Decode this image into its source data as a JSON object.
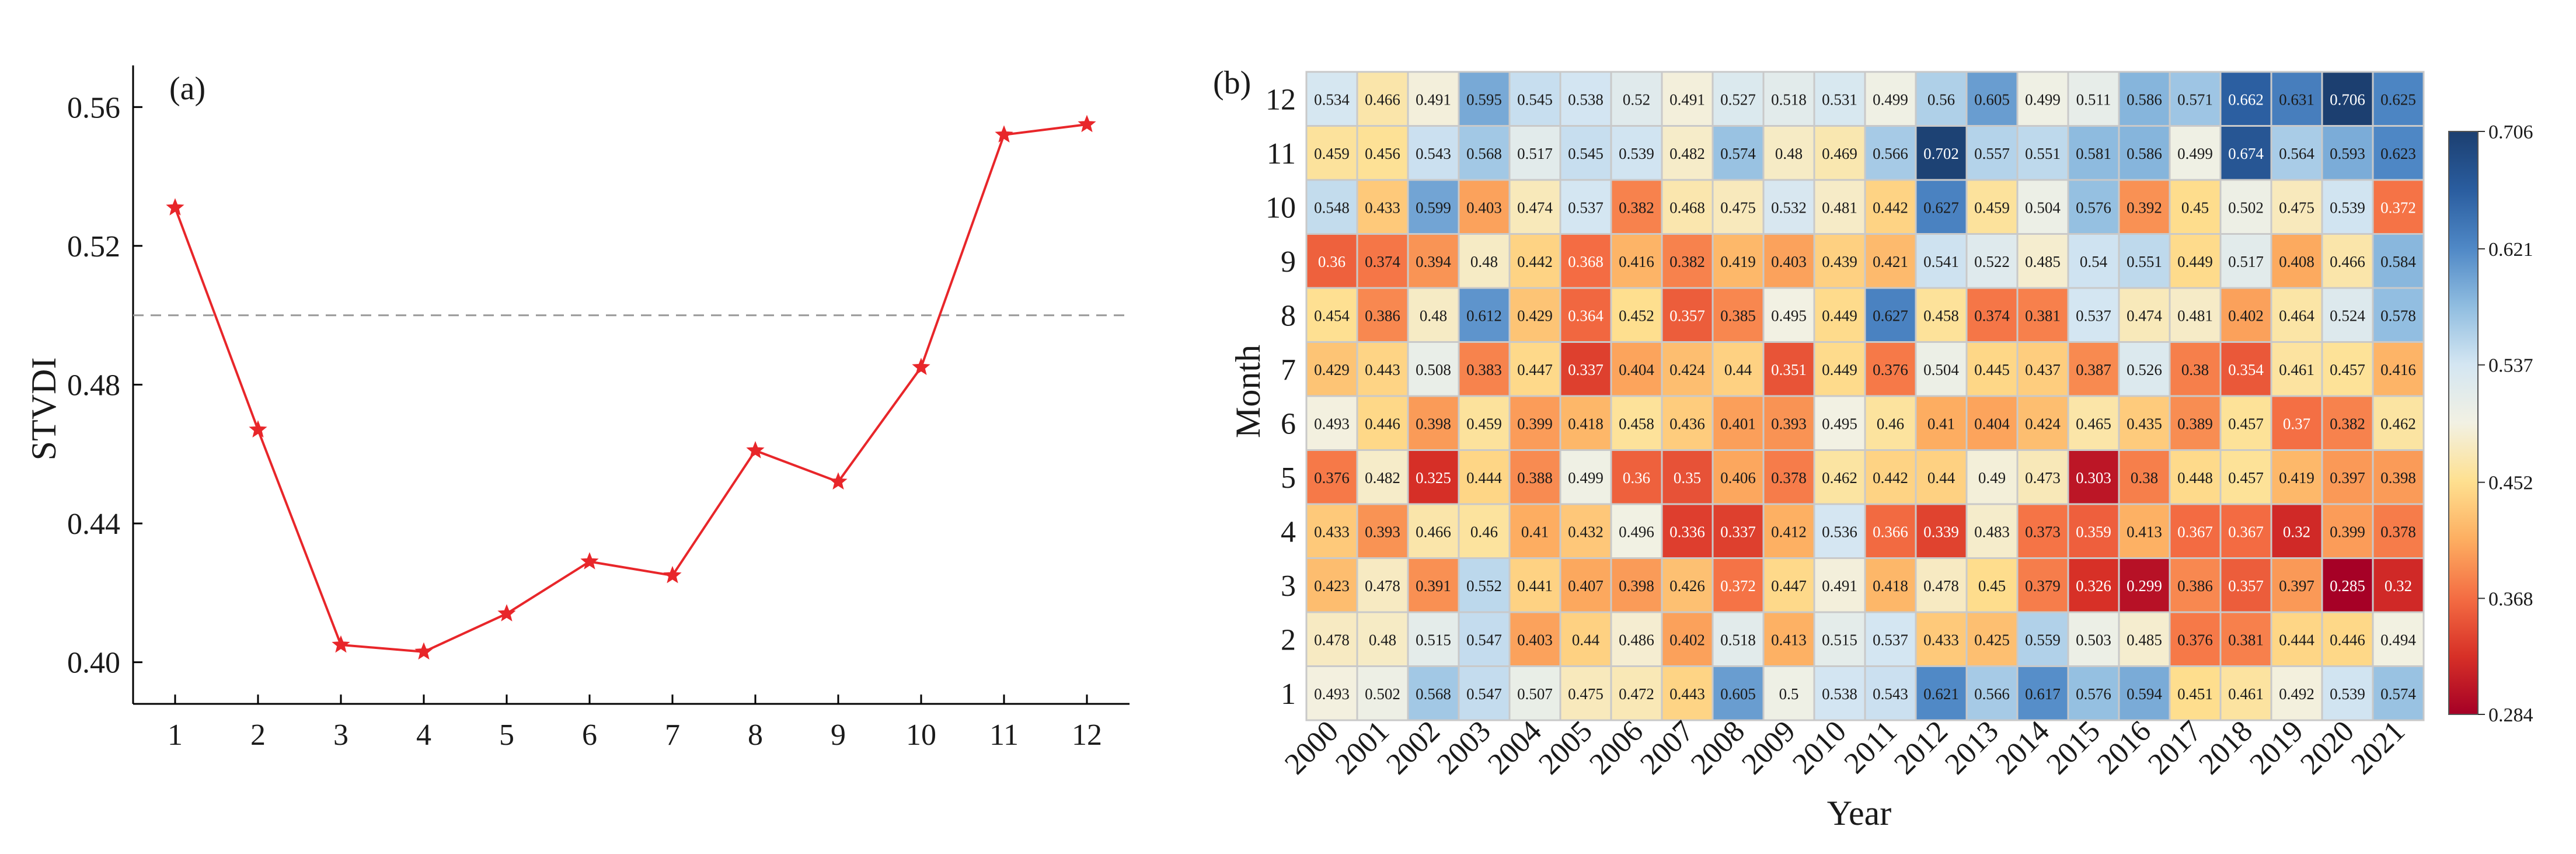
{
  "chart_data": [
    {
      "type": "line",
      "panel_label": "(a)",
      "ylabel": "STVDI",
      "xlabel": "",
      "x": [
        1,
        2,
        3,
        4,
        5,
        6,
        7,
        8,
        9,
        10,
        11,
        12
      ],
      "x_tick_labels": [
        "1",
        "2",
        "3",
        "4",
        "5",
        "6",
        "7",
        "8",
        "9",
        "10",
        "11",
        "12"
      ],
      "y": [
        0.531,
        0.467,
        0.405,
        0.403,
        0.414,
        0.429,
        0.425,
        0.461,
        0.452,
        0.485,
        0.552,
        0.555
      ],
      "ylim": [
        0.388,
        0.572
      ],
      "y_ticks": [
        0.4,
        0.44,
        0.48,
        0.52,
        0.56
      ],
      "y_tick_labels": [
        "0.40",
        "0.44",
        "0.48",
        "0.52",
        "0.56"
      ],
      "reference_line": 0.5,
      "line_color": "#e8262a",
      "marker": "star",
      "grid": false
    },
    {
      "type": "heatmap",
      "panel_label": "(b)",
      "xlabel": "Year",
      "ylabel": "Month",
      "years": [
        "2000",
        "2001",
        "2002",
        "2003",
        "2004",
        "2005",
        "2006",
        "2007",
        "2008",
        "2009",
        "2010",
        "2011",
        "2012",
        "2013",
        "2014",
        "2015",
        "2016",
        "2017",
        "2018",
        "2019",
        "2020",
        "2021"
      ],
      "months": [
        "12",
        "11",
        "10",
        "9",
        "8",
        "7",
        "6",
        "5",
        "4",
        "3",
        "2",
        "1"
      ],
      "values": [
        [
          "0.534",
          "0.466",
          "0.491",
          "0.595",
          "0.545",
          "0.538",
          "0.52",
          "0.491",
          "0.527",
          "0.518",
          "0.531",
          "0.499",
          "0.56",
          "0.605",
          "0.499",
          "0.511",
          "0.586",
          "0.571",
          "0.662",
          "0.631",
          "0.706",
          "0.625"
        ],
        [
          "0.459",
          "0.456",
          "0.543",
          "0.568",
          "0.517",
          "0.545",
          "0.539",
          "0.482",
          "0.574",
          "0.48",
          "0.469",
          "0.566",
          "0.702",
          "0.557",
          "0.551",
          "0.581",
          "0.586",
          "0.499",
          "0.674",
          "0.564",
          "0.593",
          "0.623"
        ],
        [
          "0.548",
          "0.433",
          "0.599",
          "0.403",
          "0.474",
          "0.537",
          "0.382",
          "0.468",
          "0.475",
          "0.532",
          "0.481",
          "0.442",
          "0.627",
          "0.459",
          "0.504",
          "0.576",
          "0.392",
          "0.45",
          "0.502",
          "0.475",
          "0.539",
          "0.372"
        ],
        [
          "0.36",
          "0.374",
          "0.394",
          "0.48",
          "0.442",
          "0.368",
          "0.416",
          "0.382",
          "0.419",
          "0.403",
          "0.439",
          "0.421",
          "0.541",
          "0.522",
          "0.485",
          "0.54",
          "0.551",
          "0.449",
          "0.517",
          "0.408",
          "0.466",
          "0.584"
        ],
        [
          "0.454",
          "0.386",
          "0.48",
          "0.612",
          "0.429",
          "0.364",
          "0.452",
          "0.357",
          "0.385",
          "0.495",
          "0.449",
          "0.627",
          "0.458",
          "0.374",
          "0.381",
          "0.537",
          "0.474",
          "0.481",
          "0.402",
          "0.464",
          "0.524",
          "0.578"
        ],
        [
          "0.429",
          "0.443",
          "0.508",
          "0.383",
          "0.447",
          "0.337",
          "0.404",
          "0.424",
          "0.44",
          "0.351",
          "0.449",
          "0.376",
          "0.504",
          "0.445",
          "0.437",
          "0.387",
          "0.526",
          "0.38",
          "0.354",
          "0.461",
          "0.457",
          "0.416"
        ],
        [
          "0.493",
          "0.446",
          "0.398",
          "0.459",
          "0.399",
          "0.418",
          "0.458",
          "0.436",
          "0.401",
          "0.393",
          "0.495",
          "0.46",
          "0.41",
          "0.404",
          "0.424",
          "0.465",
          "0.435",
          "0.389",
          "0.457",
          "0.37",
          "0.382",
          "0.462"
        ],
        [
          "0.376",
          "0.482",
          "0.325",
          "0.444",
          "0.388",
          "0.499",
          "0.36",
          "0.35",
          "0.406",
          "0.378",
          "0.462",
          "0.442",
          "0.44",
          "0.49",
          "0.473",
          "0.303",
          "0.38",
          "0.448",
          "0.457",
          "0.419",
          "0.397",
          "0.398"
        ],
        [
          "0.433",
          "0.393",
          "0.466",
          "0.46",
          "0.41",
          "0.432",
          "0.496",
          "0.336",
          "0.337",
          "0.412",
          "0.536",
          "0.366",
          "0.339",
          "0.483",
          "0.373",
          "0.359",
          "0.413",
          "0.367",
          "0.367",
          "0.32",
          "0.399",
          "0.378"
        ],
        [
          "0.423",
          "0.478",
          "0.391",
          "0.552",
          "0.441",
          "0.407",
          "0.398",
          "0.426",
          "0.372",
          "0.447",
          "0.491",
          "0.418",
          "0.478",
          "0.45",
          "0.379",
          "0.326",
          "0.299",
          "0.386",
          "0.357",
          "0.397",
          "0.285",
          "0.32"
        ],
        [
          "0.478",
          "0.48",
          "0.515",
          "0.547",
          "0.403",
          "0.44",
          "0.486",
          "0.402",
          "0.518",
          "0.413",
          "0.515",
          "0.537",
          "0.433",
          "0.425",
          "0.559",
          "0.503",
          "0.485",
          "0.376",
          "0.381",
          "0.444",
          "0.446",
          "0.494"
        ],
        [
          "0.493",
          "0.502",
          "0.568",
          "0.547",
          "0.507",
          "0.475",
          "0.472",
          "0.443",
          "0.605",
          "0.5",
          "0.538",
          "0.543",
          "0.621",
          "0.566",
          "0.617",
          "0.576",
          "0.594",
          "0.451",
          "0.461",
          "0.492",
          "0.539",
          "0.574"
        ]
      ],
      "colorbar": {
        "min": 0.284,
        "max": 0.706,
        "ticks": [
          "0.706",
          "0.621",
          "0.537",
          "0.452",
          "0.368",
          "0.284"
        ],
        "stops": [
          "#a50026",
          "#d73027",
          "#f46d43",
          "#fdae61",
          "#fee090",
          "#f2f1e3",
          "#d4e6f2",
          "#90bde0",
          "#4f88c6",
          "#2a5d9f",
          "#1c3f70"
        ]
      }
    }
  ]
}
